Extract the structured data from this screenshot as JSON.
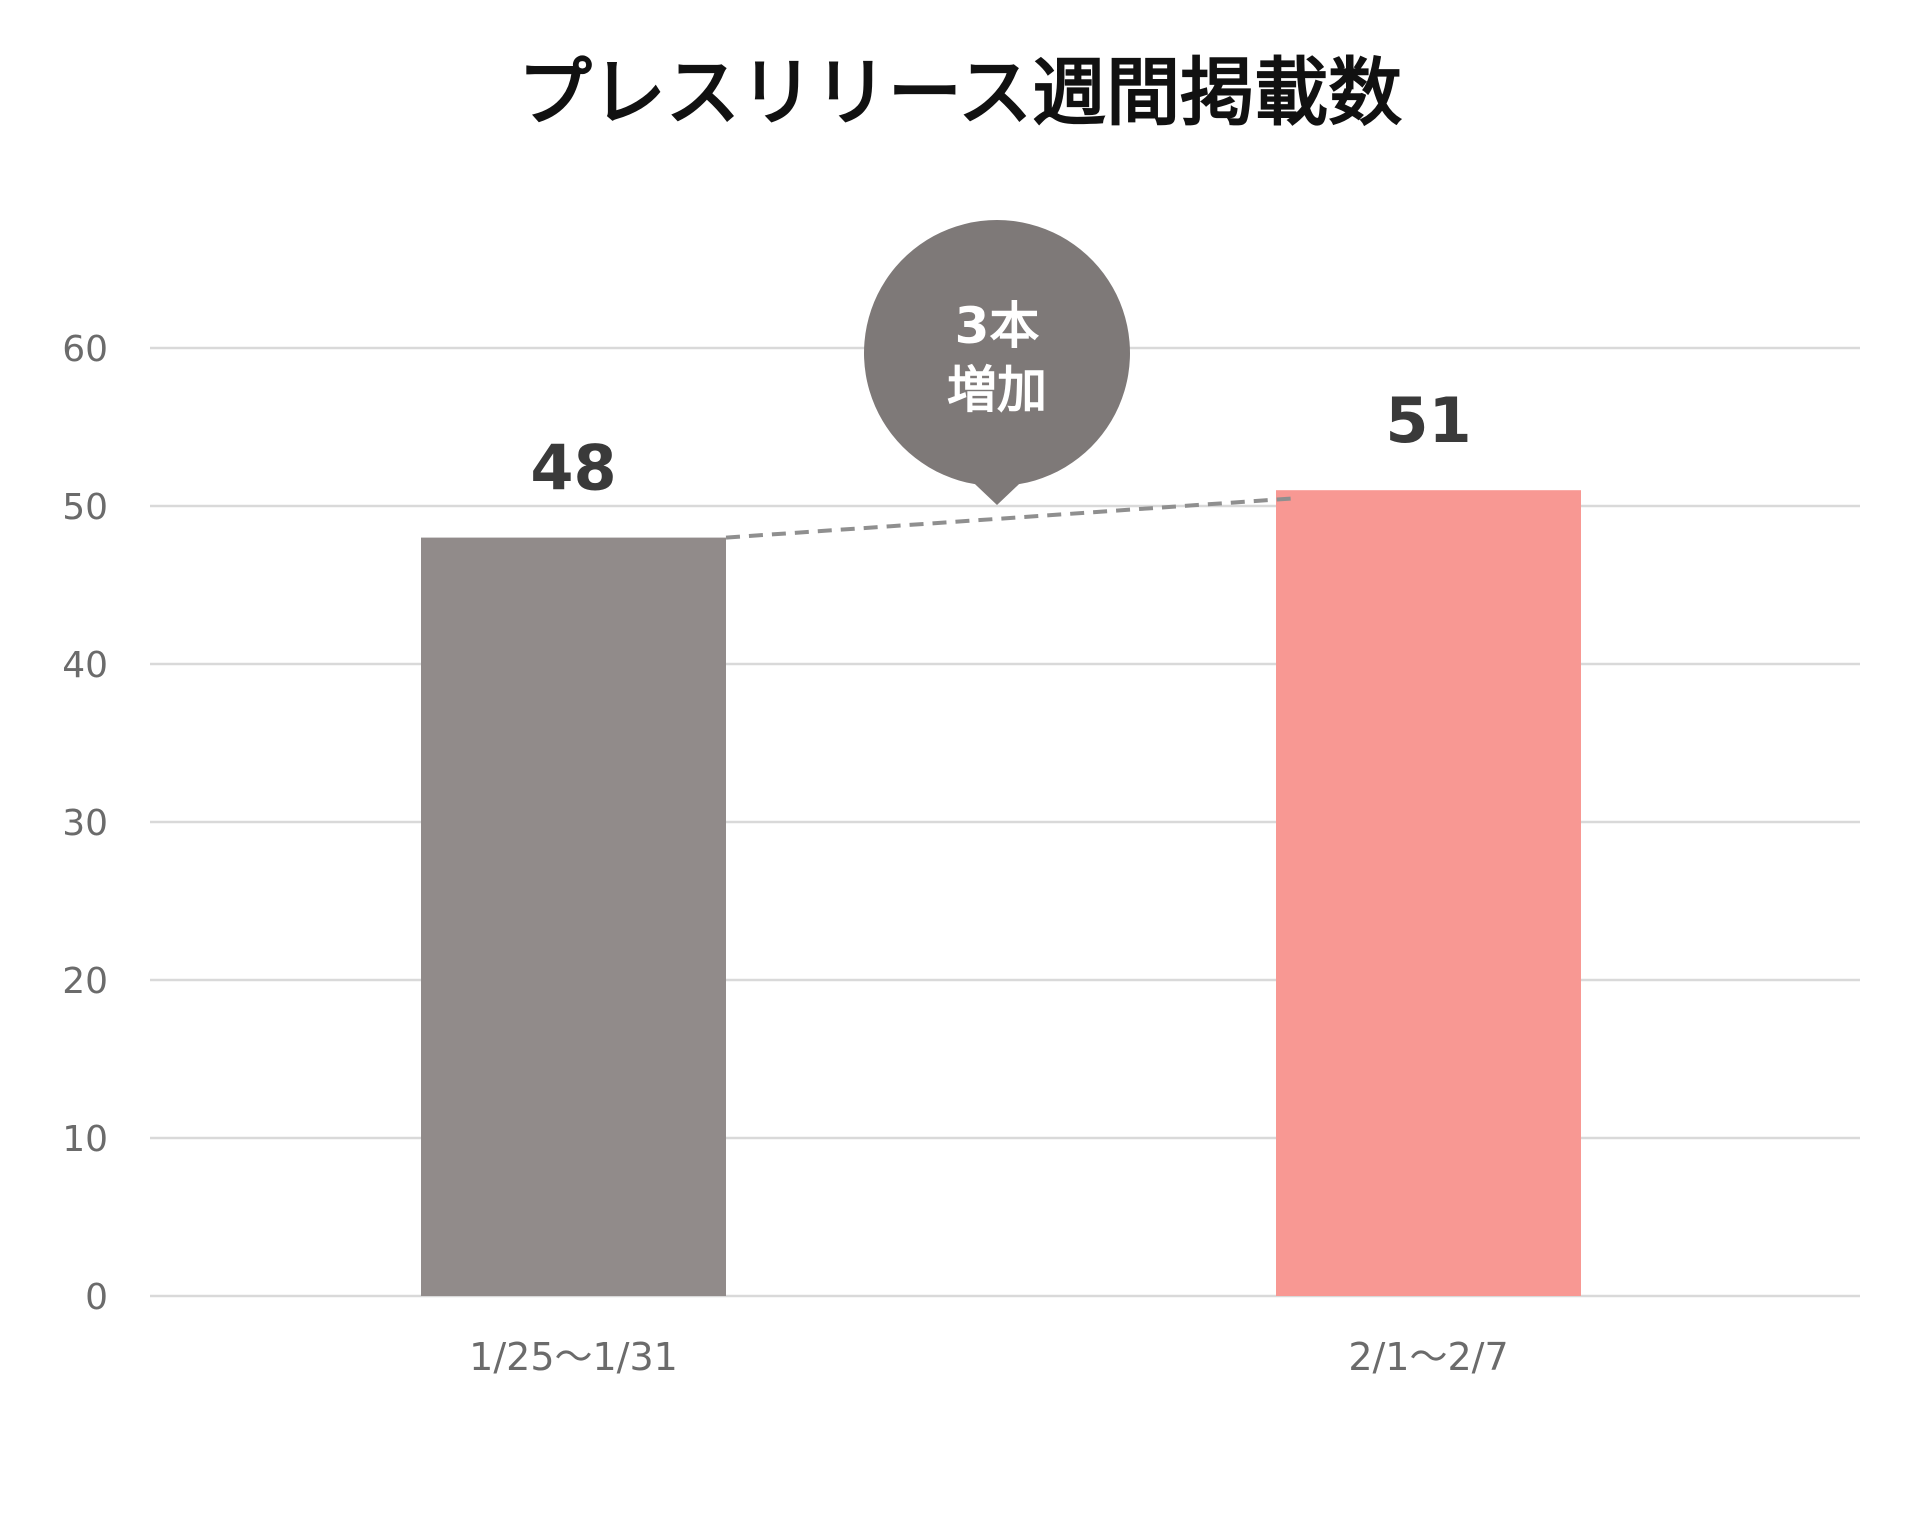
{
  "chart_data": {
    "type": "bar",
    "title": "プレスリリース週間掲載数",
    "categories": [
      "1/25〜1/31",
      "2/1〜2/7"
    ],
    "values": [
      48,
      51
    ],
    "data_labels": [
      "48",
      "51"
    ],
    "bar_colors": [
      "#918b8a",
      "#f89893"
    ],
    "xlabel": "",
    "ylabel": "",
    "ylim": [
      0,
      60
    ],
    "y_ticks": [
      0,
      10,
      20,
      30,
      40,
      50,
      60
    ],
    "grid": true,
    "legend": "none",
    "annotation": {
      "lines": [
        "3本",
        "増加"
      ],
      "color": "#7e7978",
      "connector": "dashed"
    }
  }
}
